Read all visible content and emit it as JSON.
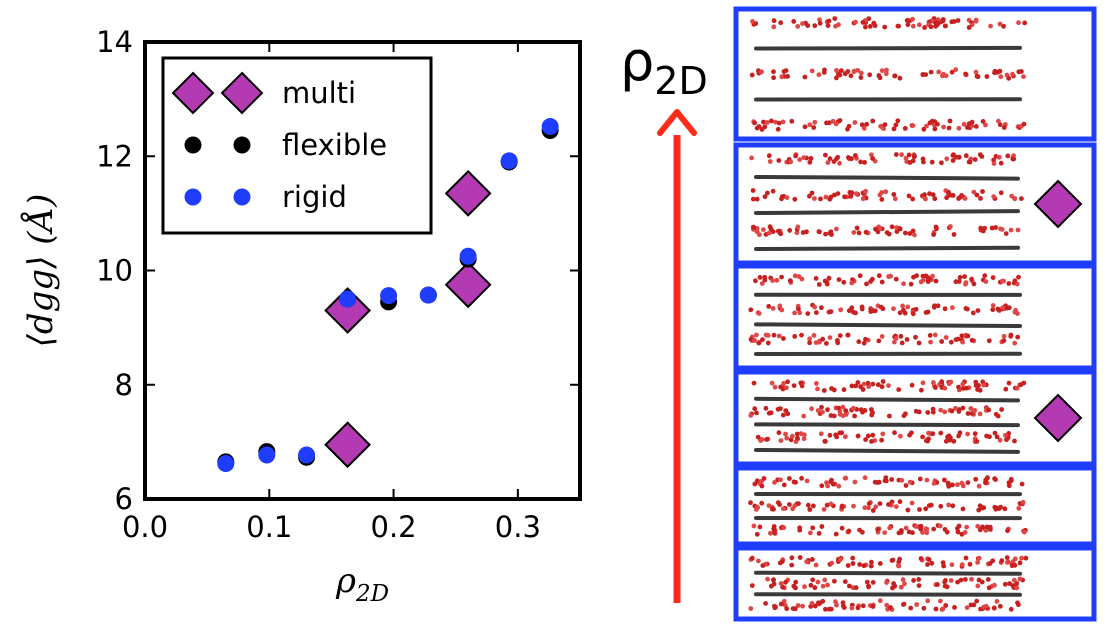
{
  "chart_data": {
    "type": "scatter",
    "xlabel": "ρ2D",
    "xlabel_main": "ρ",
    "xlabel_sub": "2D",
    "ylabel": "⟨dgg⟩ (Å)",
    "xlim": [
      0.0,
      0.35
    ],
    "ylim": [
      6,
      14
    ],
    "xticks": [
      0.0,
      0.1,
      0.2,
      0.3
    ],
    "xtick_labels": [
      "0.0",
      "0.1",
      "0.2",
      "0.3"
    ],
    "yticks": [
      6,
      8,
      10,
      12,
      14
    ],
    "ytick_labels": [
      "6",
      "8",
      "10",
      "12",
      "14"
    ],
    "grid": false,
    "legend_position": "top-left",
    "series": [
      {
        "name": "multi",
        "marker": "diamond",
        "color": "#b33ab3",
        "points": [
          [
            0.163,
            6.95
          ],
          [
            0.163,
            9.3
          ],
          [
            0.26,
            9.75
          ],
          [
            0.26,
            11.35
          ]
        ]
      },
      {
        "name": "flexible",
        "marker": "circle",
        "color": "#000000",
        "points": [
          [
            0.065,
            6.65
          ],
          [
            0.098,
            6.83
          ],
          [
            0.13,
            6.73
          ],
          [
            0.163,
            9.5
          ],
          [
            0.196,
            9.45
          ],
          [
            0.228,
            9.57
          ],
          [
            0.26,
            10.2
          ],
          [
            0.293,
            11.9
          ],
          [
            0.326,
            12.45
          ]
        ]
      },
      {
        "name": "rigid",
        "marker": "circle",
        "color": "#1f3dff",
        "points": [
          [
            0.065,
            6.62
          ],
          [
            0.098,
            6.77
          ],
          [
            0.13,
            6.77
          ],
          [
            0.163,
            9.5
          ],
          [
            0.196,
            9.56
          ],
          [
            0.228,
            9.57
          ],
          [
            0.26,
            10.25
          ],
          [
            0.293,
            11.92
          ],
          [
            0.326,
            12.52
          ]
        ]
      }
    ]
  },
  "side_panel": {
    "arrow_label_main": "ρ",
    "arrow_label_sub": "2D",
    "arrow_color": "#ff2a1a",
    "frame_color": "#1f3dff",
    "snapshots": [
      {
        "marked": false,
        "lines": 5
      },
      {
        "marked": true,
        "lines": 6
      },
      {
        "marked": false,
        "lines": 6
      },
      {
        "marked": true,
        "lines": 6
      },
      {
        "marked": false,
        "lines": 5
      },
      {
        "marked": false,
        "lines": 5
      }
    ]
  }
}
